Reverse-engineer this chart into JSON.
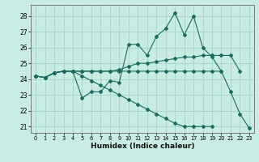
{
  "xlabel": "Humidex (Indice chaleur)",
  "bg_color": "#c8ebe4",
  "grid_color": "#9ecdc4",
  "line_color": "#1a6b60",
  "xlim": [
    -0.5,
    23.5
  ],
  "ylim": [
    20.6,
    28.7
  ],
  "yticks": [
    21,
    22,
    23,
    24,
    25,
    26,
    27,
    28
  ],
  "xticks": [
    0,
    1,
    2,
    3,
    4,
    5,
    6,
    7,
    8,
    9,
    10,
    11,
    12,
    13,
    14,
    15,
    16,
    17,
    18,
    19,
    20,
    21,
    22,
    23
  ],
  "lines": [
    {
      "x": [
        0,
        1,
        2,
        3,
        4,
        5,
        6,
        7,
        8,
        9,
        10,
        11,
        12,
        13,
        14,
        15,
        16,
        17,
        18,
        19,
        20,
        21,
        22,
        23
      ],
      "y": [
        24.2,
        24.1,
        24.4,
        24.5,
        24.5,
        22.8,
        23.2,
        23.2,
        23.9,
        23.8,
        26.2,
        26.2,
        25.5,
        26.7,
        27.2,
        28.2,
        26.8,
        28.0,
        26.0,
        25.4,
        24.5,
        23.2,
        21.8,
        20.9
      ]
    },
    {
      "x": [
        0,
        1,
        2,
        3,
        4,
        5,
        6,
        7,
        8,
        9,
        10,
        11,
        12,
        13,
        14,
        15,
        16,
        17,
        18,
        19,
        20,
        21,
        22,
        23
      ],
      "y": [
        24.2,
        24.1,
        24.4,
        24.5,
        24.5,
        24.5,
        24.5,
        24.5,
        24.5,
        24.6,
        24.8,
        25.0,
        25.0,
        25.1,
        25.2,
        25.3,
        25.4,
        25.4,
        25.5,
        25.5,
        25.5,
        25.5,
        24.5,
        null
      ]
    },
    {
      "x": [
        0,
        1,
        2,
        3,
        4,
        5,
        6,
        7,
        8,
        9,
        10,
        11,
        12,
        13,
        14,
        15,
        16,
        17,
        18,
        19,
        20
      ],
      "y": [
        24.2,
        24.1,
        24.4,
        24.5,
        24.5,
        24.5,
        24.5,
        24.5,
        24.5,
        24.5,
        24.5,
        24.5,
        24.5,
        24.5,
        24.5,
        24.5,
        24.5,
        24.5,
        24.5,
        24.5,
        24.5
      ]
    },
    {
      "x": [
        0,
        1,
        2,
        3,
        4,
        5,
        6,
        7,
        8,
        9,
        10,
        11,
        12,
        13,
        14,
        15,
        16,
        17,
        18,
        19,
        20,
        21,
        22,
        23
      ],
      "y": [
        24.2,
        24.1,
        24.4,
        24.5,
        24.5,
        24.2,
        23.9,
        23.6,
        23.3,
        23.0,
        22.7,
        22.4,
        22.1,
        21.8,
        21.5,
        21.2,
        21.0,
        21.0,
        21.0,
        21.0,
        null,
        null,
        null,
        null
      ]
    }
  ]
}
